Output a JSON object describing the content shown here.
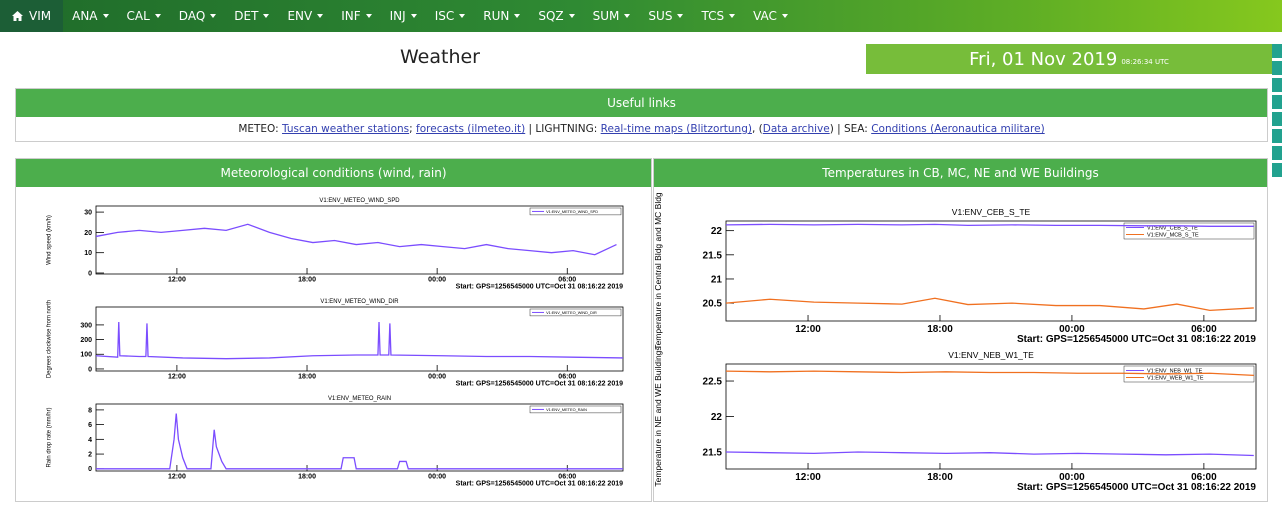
{
  "nav": {
    "items": [
      "VIM",
      "ANA",
      "CAL",
      "DAQ",
      "DET",
      "ENV",
      "INF",
      "INJ",
      "ISC",
      "RUN",
      "SQZ",
      "SUM",
      "SUS",
      "TCS",
      "VAC"
    ]
  },
  "header": {
    "title": "Weather",
    "date": "Fri, 01 Nov 2019",
    "time": "08:26:34 UTC"
  },
  "links": {
    "title": "Useful links",
    "segments": [
      {
        "text": "METEO: "
      },
      {
        "text": "Tuscan weather stations",
        "link": true
      },
      {
        "text": "; "
      },
      {
        "text": "forecasts (ilmeteo.it)",
        "link": true
      },
      {
        "text": " | LIGHTNING: "
      },
      {
        "text": "Real-time maps (Blitzortung)",
        "link": true
      },
      {
        "text": ", ("
      },
      {
        "text": "Data archive",
        "link": true
      },
      {
        "text": ") | SEA: "
      },
      {
        "text": "Conditions (Aeronautica militare)",
        "link": true
      }
    ]
  },
  "panels": [
    {
      "title": "Meteorological conditions (wind, rain)",
      "charts": [
        {
          "type": "line",
          "title": "V1:ENV_METEO_WIND_SPD",
          "ylabel": "Wind speed (km/h)",
          "note": "Start: GPS=1256545000 UTC=Oct 31 08:16:22 2019",
          "xlim": [
            0,
            24.3
          ],
          "xticks": [
            {
              "value": 3.73,
              "label": "12:00"
            },
            {
              "value": 9.73,
              "label": "18:00"
            },
            {
              "value": 15.73,
              "label": "00:00"
            },
            {
              "value": 21.73,
              "label": "06:00"
            }
          ],
          "ylim": [
            -0.5,
            33
          ],
          "yticks": [
            0,
            10,
            20,
            30
          ],
          "x": [
            0,
            1,
            2,
            3,
            4,
            5,
            6,
            7,
            8,
            9,
            10,
            11,
            12,
            13,
            14,
            15,
            16,
            17,
            18,
            19,
            20,
            21,
            22,
            23,
            24
          ],
          "series": [
            {
              "name": "V1:ENV_METEO_WIND_SPD",
              "color": "#7b4dff",
              "values": [
                18,
                20,
                21,
                20,
                21,
                22,
                21,
                24,
                20,
                17,
                15,
                16,
                14,
                15,
                13,
                14,
                13,
                12,
                14,
                12,
                11,
                10,
                11,
                9,
                14
              ]
            }
          ]
        },
        {
          "type": "line",
          "title": "V1:ENV_METEO_WIND_DIR",
          "ylabel": "Degrees clockwise from north",
          "note": "Start: GPS=1256545000 UTC=Oct 31 08:16:22 2019",
          "xlim": [
            0,
            24.3
          ],
          "xticks": [
            {
              "value": 3.73,
              "label": "12:00"
            },
            {
              "value": 9.73,
              "label": "18:00"
            },
            {
              "value": 15.73,
              "label": "00:00"
            },
            {
              "value": 21.73,
              "label": "06:00"
            }
          ],
          "ylim": [
            -14,
            422
          ],
          "yticks": [
            0,
            100,
            200,
            300
          ],
          "x": [
            0,
            1,
            1.05,
            1.1,
            2,
            2.3,
            2.35,
            2.4,
            4,
            6,
            8,
            10,
            12,
            13,
            13.05,
            13.1,
            13.5,
            13.55,
            13.6,
            16,
            18,
            20,
            22,
            24.3
          ],
          "series": [
            {
              "name": "V1:ENV_METEO_WIND_DIR",
              "color": "#7b4dff",
              "values": [
                90,
                80,
                320,
                90,
                85,
                85,
                310,
                85,
                75,
                70,
                75,
                90,
                95,
                95,
                320,
                95,
                95,
                310,
                95,
                90,
                85,
                85,
                80,
                75
              ]
            }
          ]
        },
        {
          "type": "line",
          "title": "V1:ENV_METEO_RAIN",
          "ylabel": "Rain drop rate (mm/hr)",
          "note": "Start: GPS=1256545000 UTC=Oct 31 08:16:22 2019",
          "xlim": [
            0,
            24.3
          ],
          "xticks": [
            {
              "value": 3.73,
              "label": "12:00"
            },
            {
              "value": 9.73,
              "label": "18:00"
            },
            {
              "value": 15.73,
              "label": "00:00"
            },
            {
              "value": 21.73,
              "label": "06:00"
            }
          ],
          "ylim": [
            -0.3,
            8.8
          ],
          "yticks": [
            0,
            2,
            4,
            6,
            8
          ],
          "x": [
            0,
            3.4,
            3.6,
            3.7,
            3.8,
            4.0,
            4.2,
            5.3,
            5.45,
            5.55,
            5.8,
            6.0,
            11.3,
            11.4,
            11.9,
            12.0,
            13.9,
            14.0,
            14.3,
            14.4,
            24.3
          ],
          "series": [
            {
              "name": "V1:ENV_METEO_RAIN",
              "color": "#7b4dff",
              "values": [
                0,
                0,
                4,
                7.5,
                4,
                1.5,
                0,
                0,
                5.3,
                3,
                1,
                0,
                0,
                1.5,
                1.5,
                0,
                0,
                1,
                1,
                0,
                0
              ]
            }
          ]
        }
      ]
    },
    {
      "title": "Temperatures in CB, MC, NE and WE Buildings",
      "charts": [
        {
          "type": "line",
          "title": "V1:ENV_CEB_S_TE",
          "ylabel": "Temperature in Central Bldg and MC Bldg",
          "note": "Start: GPS=1256545000 UTC=Oct 31 08:16:22 2019",
          "xlim": [
            0,
            24.1
          ],
          "xticks": [
            {
              "value": 3.73,
              "label": "12:00"
            },
            {
              "value": 9.73,
              "label": "18:00"
            },
            {
              "value": 15.73,
              "label": "00:00"
            },
            {
              "value": 21.73,
              "label": "06:00"
            }
          ],
          "ylim": [
            20.13,
            22.2
          ],
          "yticks": [
            20.5,
            21,
            21.5,
            22
          ],
          "x": [
            0,
            2,
            4,
            6,
            8,
            9.5,
            11,
            13,
            15,
            17,
            19,
            20.5,
            22,
            24
          ],
          "series": [
            {
              "name": "V1:ENV_CEB_S_TE",
              "color": "#7b4dff",
              "values": [
                22.12,
                22.13,
                22.12,
                22.13,
                22.12,
                22.13,
                22.11,
                22.12,
                22.11,
                22.11,
                22.1,
                22.1,
                22.09,
                22.09
              ]
            },
            {
              "name": "V1:ENV_MCB_S_TE",
              "color": "#f07020",
              "values": [
                20.5,
                20.58,
                20.52,
                20.5,
                20.48,
                20.6,
                20.47,
                20.5,
                20.45,
                20.45,
                20.38,
                20.48,
                20.35,
                20.4
              ]
            }
          ]
        },
        {
          "type": "line",
          "title": "V1:ENV_NEB_W1_TE",
          "ylabel": "Temperature in NE and WE Buildings",
          "note": "Start: GPS=1256545000 UTC=Oct 31 08:16:22 2019",
          "xlim": [
            0,
            24.1
          ],
          "xticks": [
            {
              "value": 3.73,
              "label": "12:00"
            },
            {
              "value": 9.73,
              "label": "18:00"
            },
            {
              "value": 15.73,
              "label": "00:00"
            },
            {
              "value": 21.73,
              "label": "06:00"
            }
          ],
          "ylim": [
            21.26,
            22.74
          ],
          "yticks": [
            21.5,
            22,
            22.5
          ],
          "x": [
            0,
            2,
            4,
            6,
            8,
            10,
            12,
            14,
            16,
            18,
            20,
            22,
            24
          ],
          "series": [
            {
              "name": "V1:ENV_NEB_W1_TE",
              "color": "#7b4dff",
              "values": [
                21.5,
                21.49,
                21.48,
                21.5,
                21.49,
                21.48,
                21.49,
                21.47,
                21.48,
                21.47,
                21.46,
                21.47,
                21.45
              ]
            },
            {
              "name": "V1:ENV_WEB_W1_TE",
              "color": "#f07020",
              "values": [
                22.64,
                22.63,
                22.64,
                22.63,
                22.62,
                22.63,
                22.62,
                22.62,
                22.61,
                22.61,
                22.6,
                22.61,
                22.58
              ]
            }
          ]
        }
      ]
    }
  ]
}
